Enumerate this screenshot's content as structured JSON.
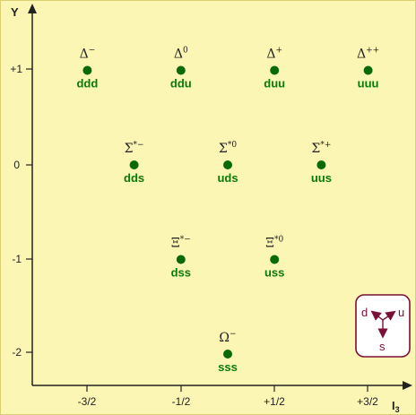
{
  "axes": {
    "y_label": "Y",
    "x_label_main": "I",
    "x_label_sub": "3",
    "x_ticks": [
      "-3/2",
      "-1/2",
      "+1/2",
      "+3/2"
    ],
    "y_ticks": [
      "+1",
      "0",
      "-1",
      "-2"
    ]
  },
  "particles": [
    {
      "symbol": "Δ",
      "charge": "−",
      "quarks": "ddd",
      "i3": -1.5,
      "y": 1
    },
    {
      "symbol": "Δ",
      "charge": "0",
      "quarks": "ddu",
      "i3": -0.5,
      "y": 1
    },
    {
      "symbol": "Δ",
      "charge": "+",
      "quarks": "duu",
      "i3": 0.5,
      "y": 1
    },
    {
      "symbol": "Δ",
      "charge": "++",
      "quarks": "uuu",
      "i3": 1.5,
      "y": 1
    },
    {
      "symbol": "Σ",
      "charge": "*−",
      "quarks": "dds",
      "i3": -1,
      "y": 0
    },
    {
      "symbol": "Σ",
      "charge": "*0",
      "quarks": "uds",
      "i3": 0,
      "y": 0
    },
    {
      "symbol": "Σ",
      "charge": "*+",
      "quarks": "uus",
      "i3": 1,
      "y": 0
    },
    {
      "symbol": "Ξ",
      "charge": "*−",
      "quarks": "dss",
      "i3": -0.5,
      "y": -1
    },
    {
      "symbol": "Ξ",
      "charge": "*0",
      "quarks": "uss",
      "i3": 0.5,
      "y": -1
    },
    {
      "symbol": "Ω",
      "charge": "−",
      "quarks": "sss",
      "i3": 0,
      "y": -2
    }
  ],
  "legend": {
    "d": "d",
    "u": "u",
    "s": "s"
  },
  "colors": {
    "background": "#fbf6b4",
    "dot": "#0a6a0a",
    "quark_text": "#0a7a0a",
    "axis": "#222222",
    "legend": "#7a1038",
    "legend_bg": "#ffffff"
  }
}
